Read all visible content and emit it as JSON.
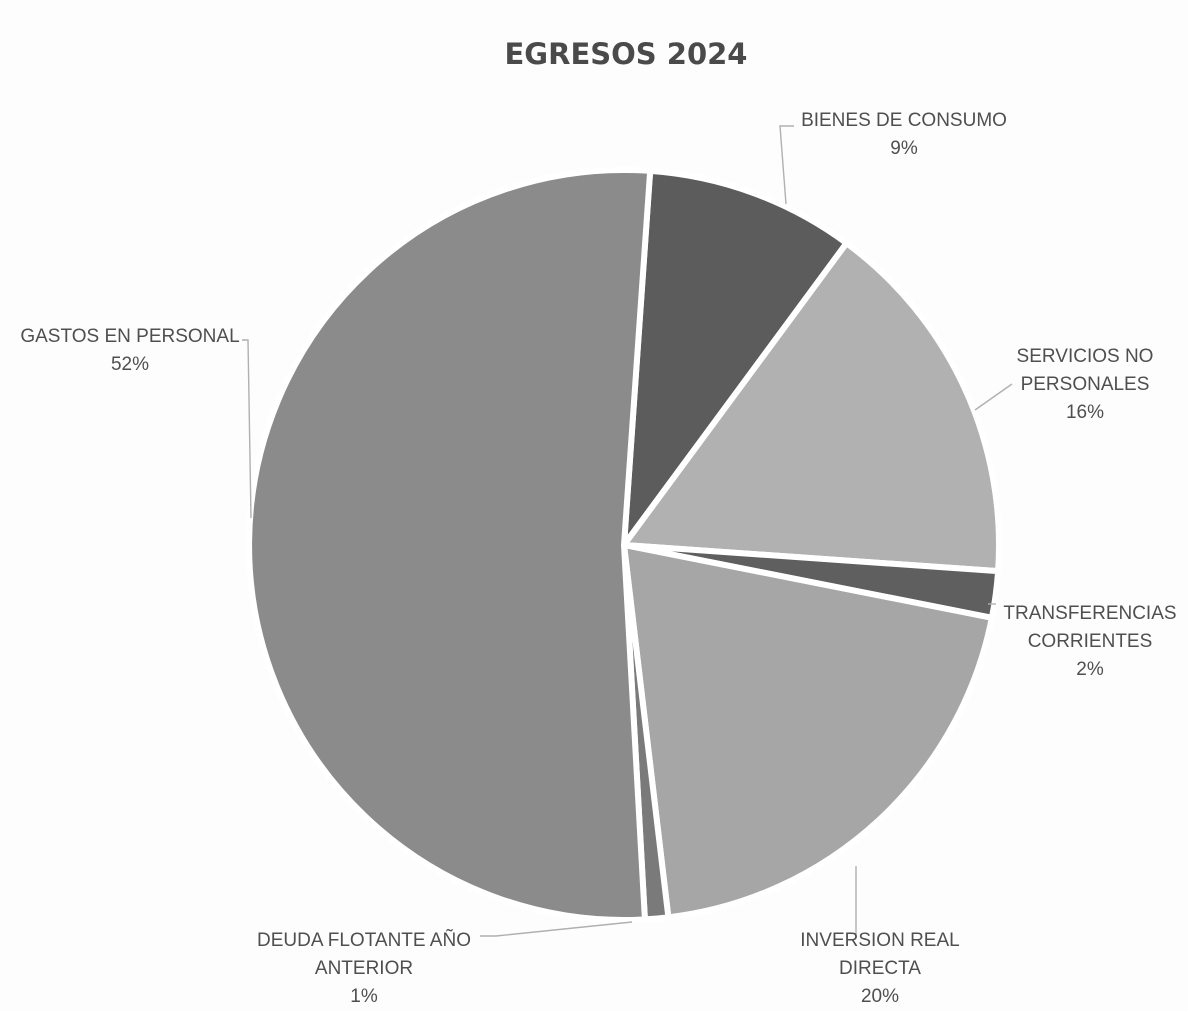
{
  "chart_data": {
    "type": "pie",
    "title": "EGRESOS 2024",
    "slices": [
      {
        "label": [
          "BIENES DE CONSUMO"
        ],
        "percent_label": "9%",
        "value": 9,
        "color": "#5c5c5c"
      },
      {
        "label": [
          "SERVICIOS NO",
          "PERSONALES"
        ],
        "percent_label": "16%",
        "value": 16,
        "color": "#b1b1b1"
      },
      {
        "label": [
          "TRANSFERENCIAS",
          "CORRIENTES"
        ],
        "percent_label": "2%",
        "value": 2,
        "color": "#5f5f5f"
      },
      {
        "label": [
          "INVERSION REAL",
          "DIRECTA"
        ],
        "percent_label": "20%",
        "value": 20,
        "color": "#a6a6a6"
      },
      {
        "label": [
          "DEUDA FLOTANTE AÑO",
          "ANTERIOR"
        ],
        "percent_label": "1%",
        "value": 1,
        "color": "#7a7a7a"
      },
      {
        "label": [
          "GASTOS EN PERSONAL"
        ],
        "percent_label": "52%",
        "value": 52,
        "color": "#8b8b8b"
      }
    ],
    "legend": "none",
    "data_labels": "outside"
  }
}
